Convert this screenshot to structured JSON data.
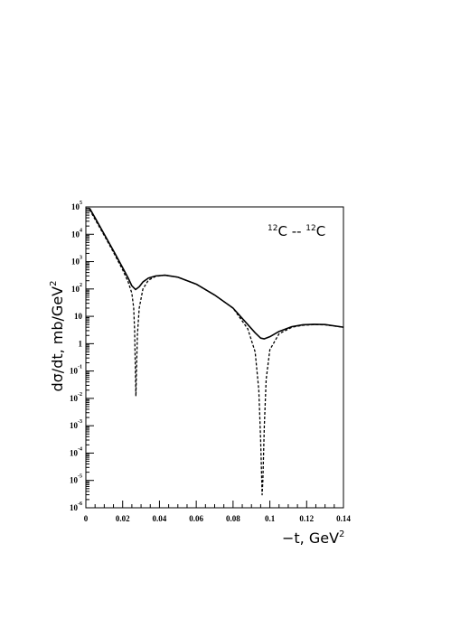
{
  "chart_data": {
    "type": "line",
    "annotation": {
      "sup1": "12",
      "text1": "C -- ",
      "sup2": "12",
      "text2": "C"
    },
    "xlabel": {
      "text": "−t, GeV",
      "sup": "2"
    },
    "ylabel": {
      "text": "dσ/dt, mb/GeV",
      "sup": "2"
    },
    "xlim": [
      0,
      0.14
    ],
    "ylim": [
      1e-06,
      100000.0
    ],
    "yscale": "log",
    "grid": false,
    "x_ticks": [
      "0",
      "0.02",
      "0.04",
      "0.06",
      "0.08",
      "0.1",
      "0.12",
      "0.14"
    ],
    "y_ticks": [
      {
        "base": "10",
        "exp": "5"
      },
      {
        "base": "10",
        "exp": "4"
      },
      {
        "base": "10",
        "exp": "3"
      },
      {
        "base": "10",
        "exp": "2"
      },
      {
        "base": "10",
        "exp": ""
      },
      {
        "base": "1",
        "exp": ""
      },
      {
        "base": "10",
        "exp": "-1"
      },
      {
        "base": "10",
        "exp": "-2"
      },
      {
        "base": "10",
        "exp": "-3"
      },
      {
        "base": "10",
        "exp": "-4"
      },
      {
        "base": "10",
        "exp": "-5"
      },
      {
        "base": "10",
        "exp": "-6"
      }
    ],
    "series": [
      {
        "style": "solid",
        "x": [
          0.002,
          0.005,
          0.01,
          0.015,
          0.02,
          0.023,
          0.025,
          0.027,
          0.029,
          0.031,
          0.034,
          0.038,
          0.043,
          0.05,
          0.06,
          0.07,
          0.08,
          0.088,
          0.092,
          0.095,
          0.097,
          0.1,
          0.105,
          0.112,
          0.118,
          0.124,
          0.13,
          0.14
        ],
        "y": [
          90000,
          40000,
          10000,
          2500,
          600,
          250,
          130,
          95,
          120,
          180,
          250,
          300,
          320,
          270,
          150,
          60,
          20,
          5,
          2.5,
          1.6,
          1.5,
          1.8,
          2.8,
          4.2,
          4.9,
          5.1,
          5.0,
          4.0
        ]
      },
      {
        "style": "dashed",
        "x": [
          0.002,
          0.005,
          0.01,
          0.015,
          0.02,
          0.023,
          0.025,
          0.026,
          0.0265,
          0.027,
          0.0272,
          0.0275,
          0.028,
          0.029,
          0.031,
          0.034,
          0.038,
          0.043,
          0.05,
          0.06,
          0.07,
          0.08,
          0.088,
          0.092,
          0.094,
          0.095,
          0.0958,
          0.0962,
          0.097,
          0.098,
          0.1,
          0.105,
          0.112,
          0.118,
          0.124,
          0.13,
          0.14
        ],
        "y": [
          80000,
          35000,
          9000,
          2200,
          500,
          180,
          70,
          20,
          3,
          0.05,
          0.012,
          0.1,
          2,
          20,
          100,
          210,
          290,
          320,
          270,
          150,
          60,
          20,
          3.5,
          0.5,
          0.02,
          0.0003,
          3e-06,
          1e-05,
          0.001,
          0.05,
          0.6,
          2.3,
          4.0,
          4.7,
          5.0,
          4.9,
          4.0
        ]
      }
    ]
  }
}
